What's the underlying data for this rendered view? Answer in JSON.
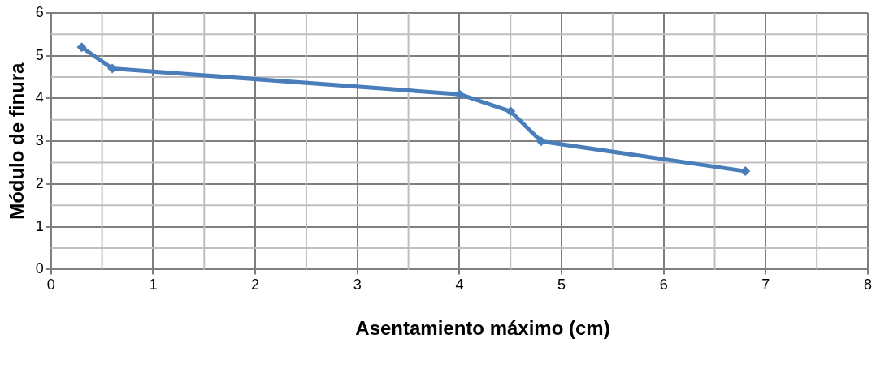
{
  "chart_data": {
    "type": "line",
    "xlabel": "Asentamiento máximo (cm)",
    "ylabel": "Módulo de finura",
    "series": [
      {
        "color": "#4a7ebb",
        "x": [
          0.3,
          0.6,
          4.0,
          4.5,
          4.8,
          6.8
        ],
        "values": [
          5.2,
          4.7,
          4.1,
          3.7,
          3.0,
          2.3
        ]
      }
    ],
    "xlim": [
      0,
      8
    ],
    "xticks": [
      0,
      1,
      2,
      3,
      4,
      5,
      6,
      7,
      8
    ],
    "ylim": [
      0,
      6
    ],
    "yticks": [
      0,
      1,
      2,
      3,
      4,
      5,
      6
    ],
    "grid": true,
    "legend": false,
    "marker": "diamond",
    "line_style": "solid"
  }
}
